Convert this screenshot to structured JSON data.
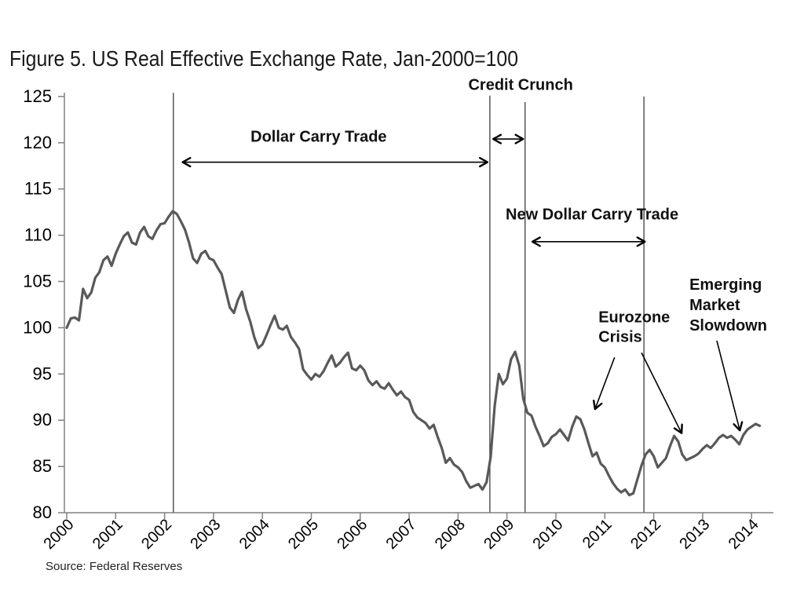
{
  "page": {
    "title": "Figure 5. US Real Effective Exchange Rate, Jan-2000=100",
    "source": "Source: Federal Reserves"
  },
  "chart_data": {
    "type": "line",
    "title": "Figure 5. US Real Effective Exchange Rate, Jan-2000=100",
    "xlabel": "",
    "ylabel": "",
    "grid": false,
    "legend": "none",
    "ylim": [
      80,
      125
    ],
    "ytick_step": 5,
    "yticks": [
      80,
      85,
      90,
      95,
      100,
      105,
      110,
      115,
      120,
      125
    ],
    "xticks": [
      2000,
      2001,
      2002,
      2003,
      2004,
      2005,
      2006,
      2007,
      2008,
      2009,
      2010,
      2011,
      2012,
      2013,
      2014
    ],
    "colors": {
      "line": "#595959",
      "axis": "#808080",
      "vline": "#3c3c3c",
      "arrow": "#000000",
      "label": "#111111",
      "tick_text": "#000000"
    },
    "series": [
      {
        "name": "US Real Effective Exchange Rate (Jan-2000=100)",
        "start_year": 2000,
        "start_month": 1,
        "frequency": "monthly",
        "values": [
          100.0,
          101.0,
          101.1,
          100.8,
          104.2,
          103.2,
          103.8,
          105.4,
          106.0,
          107.3,
          107.7,
          106.7,
          108.0,
          109.0,
          109.9,
          110.3,
          109.2,
          109.0,
          110.3,
          110.9,
          109.9,
          109.6,
          110.5,
          111.2,
          111.3,
          112.0,
          112.6,
          112.3,
          111.5,
          110.6,
          109.2,
          107.5,
          107.0,
          108.0,
          108.3,
          107.5,
          107.3,
          106.5,
          105.8,
          104.0,
          102.2,
          101.6,
          103.0,
          103.9,
          102.0,
          100.7,
          99.0,
          97.8,
          98.2,
          99.2,
          100.3,
          101.3,
          100.0,
          99.8,
          100.2,
          99.0,
          98.4,
          97.7,
          95.5,
          94.9,
          94.4,
          95.0,
          94.7,
          95.3,
          96.2,
          97.0,
          95.8,
          96.2,
          96.8,
          97.3,
          95.6,
          95.4,
          95.9,
          95.4,
          94.3,
          93.8,
          94.2,
          93.6,
          93.4,
          94.0,
          93.3,
          92.7,
          93.1,
          92.5,
          92.2,
          90.9,
          90.3,
          90.0,
          89.7,
          89.1,
          89.5,
          88.2,
          87.0,
          85.4,
          85.9,
          85.2,
          84.9,
          84.4,
          83.4,
          82.7,
          82.9,
          83.1,
          82.5,
          83.3,
          86.0,
          91.6,
          95.0,
          93.9,
          94.5,
          96.6,
          97.4,
          95.9,
          92.3,
          90.8,
          90.5,
          89.3,
          88.3,
          87.2,
          87.5,
          88.2,
          88.5,
          89.0,
          88.4,
          87.8,
          89.3,
          90.4,
          90.1,
          89.0,
          87.5,
          86.1,
          86.5,
          85.3,
          84.9,
          84.0,
          83.2,
          82.6,
          82.2,
          82.5,
          81.9,
          82.1,
          83.6,
          85.1,
          86.3,
          86.8,
          86.1,
          84.9,
          85.4,
          85.9,
          87.2,
          88.3,
          87.7,
          86.3,
          85.7,
          85.9,
          86.1,
          86.4,
          86.9,
          87.3,
          87.0,
          87.5,
          88.1,
          88.4,
          88.1,
          88.3,
          87.9,
          87.4,
          88.4,
          89.0,
          89.3,
          89.6,
          89.4
        ]
      }
    ],
    "event_vlines": [
      {
        "year": 2002.18,
        "top_value": 125.4
      },
      {
        "year": 2008.65,
        "top_value": 125.1
      },
      {
        "year": 2009.37,
        "top_value": 124.4
      },
      {
        "year": 2011.8,
        "top_value": 125.0
      }
    ],
    "arrows": [
      {
        "id": "dollar-carry-trade-span",
        "double": true,
        "from": {
          "year": 2002.37,
          "value": 117.9
        },
        "to": {
          "year": 2008.6,
          "value": 117.9
        }
      },
      {
        "id": "credit-crunch-span",
        "double": true,
        "from": {
          "year": 2008.72,
          "value": 120.4
        },
        "to": {
          "year": 2009.33,
          "value": 120.4
        }
      },
      {
        "id": "new-dollar-carry-span",
        "double": true,
        "from": {
          "year": 2009.52,
          "value": 109.3
        },
        "to": {
          "year": 2011.82,
          "value": 109.3
        }
      },
      {
        "id": "eurozone-pointer-1",
        "double": false,
        "from": {
          "year": 2011.2,
          "value": 96.8
        },
        "to": {
          "year": 2010.8,
          "value": 91.2
        }
      },
      {
        "id": "eurozone-pointer-2",
        "double": false,
        "from": {
          "year": 2011.75,
          "value": 97.3
        },
        "to": {
          "year": 2012.57,
          "value": 88.6
        }
      },
      {
        "id": "emerging-pointer",
        "double": false,
        "from": {
          "year": 2013.29,
          "value": 98.6
        },
        "to": {
          "year": 2013.76,
          "value": 88.9
        }
      }
    ],
    "annotations": [
      {
        "id": "dollar-carry-trade",
        "lines": [
          "Dollar Carry Trade"
        ],
        "anchor": "middle",
        "year": 2005.15,
        "value": 120.7,
        "line_gap": 26
      },
      {
        "id": "credit-crunch",
        "lines": [
          "Credit Crunch"
        ],
        "anchor": "middle",
        "year": 2009.28,
        "value": 126.3,
        "line_gap": 26
      },
      {
        "id": "new-dollar-carry-trade",
        "lines": [
          "New Dollar Carry Trade"
        ],
        "anchor": "middle",
        "year": 2010.74,
        "value": 112.3,
        "line_gap": 26
      },
      {
        "id": "eurozone-crisis",
        "lines": [
          "Eurozone",
          "Crisis"
        ],
        "anchor": "start",
        "year": 2010.87,
        "value": 101.2,
        "line_gap": 25
      },
      {
        "id": "emerging-market-slowdown",
        "lines": [
          "Emerging",
          "Market",
          "Slowdown"
        ],
        "anchor": "start",
        "year": 2012.73,
        "value": 104.7,
        "line_gap": 26
      }
    ]
  }
}
